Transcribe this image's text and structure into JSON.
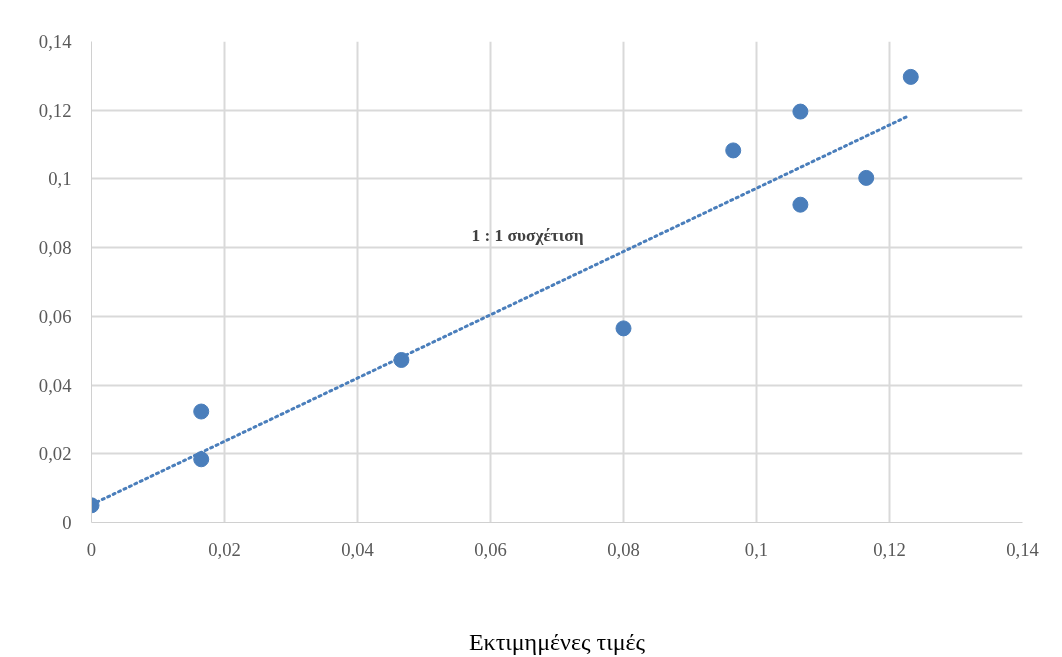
{
  "chart_data": {
    "type": "scatter",
    "xlabel": "Εκτιμημένες τιμές",
    "x": [
      0,
      0.0165,
      0.0165,
      0.0466,
      0.08,
      0.0965,
      0.1066,
      0.1066,
      0.1165,
      0.1232
    ],
    "series": [
      {
        "color": "#4a7ebb",
        "values": [
          0.005,
          0.0323,
          0.0184,
          0.0473,
          0.0565,
          0.1083,
          0.1196,
          0.0925,
          0.1003,
          0.1297
        ]
      },
      {
        "type": "line",
        "line_style": "dotted",
        "marker": "none",
        "color": "#4a7ebb",
        "x": [
          0,
          0.1226
        ],
        "values": [
          0.0052,
          0.1181
        ]
      }
    ],
    "annotations": [
      "1 : 1 συσχέτιση"
    ],
    "marker": "circle",
    "grid": true,
    "xlim": [
      0,
      0.14
    ],
    "ylim": [
      0,
      0.14
    ],
    "xticks": [
      0,
      {
        "value": 0.02,
        "label": "0,02"
      },
      {
        "value": 0.04,
        "label": "0,04"
      },
      {
        "value": 0.06,
        "label": "0,06"
      },
      {
        "value": 0.08,
        "label": "0,08"
      },
      {
        "value": 0.1,
        "label": "0,1"
      },
      {
        "value": 0.12,
        "label": "0,12"
      },
      {
        "value": 0.14,
        "label": "0,14"
      }
    ],
    "yticks": [
      0,
      {
        "value": 0.02,
        "label": "0,02"
      },
      {
        "value": 0.04,
        "label": "0,04"
      },
      {
        "value": 0.06,
        "label": "0,06"
      },
      {
        "value": 0.08,
        "label": "0,08"
      },
      {
        "value": 0.1,
        "label": "0,1"
      },
      {
        "value": 0.12,
        "label": "0,12"
      },
      {
        "value": 0.14,
        "label": "0,14"
      }
    ]
  }
}
